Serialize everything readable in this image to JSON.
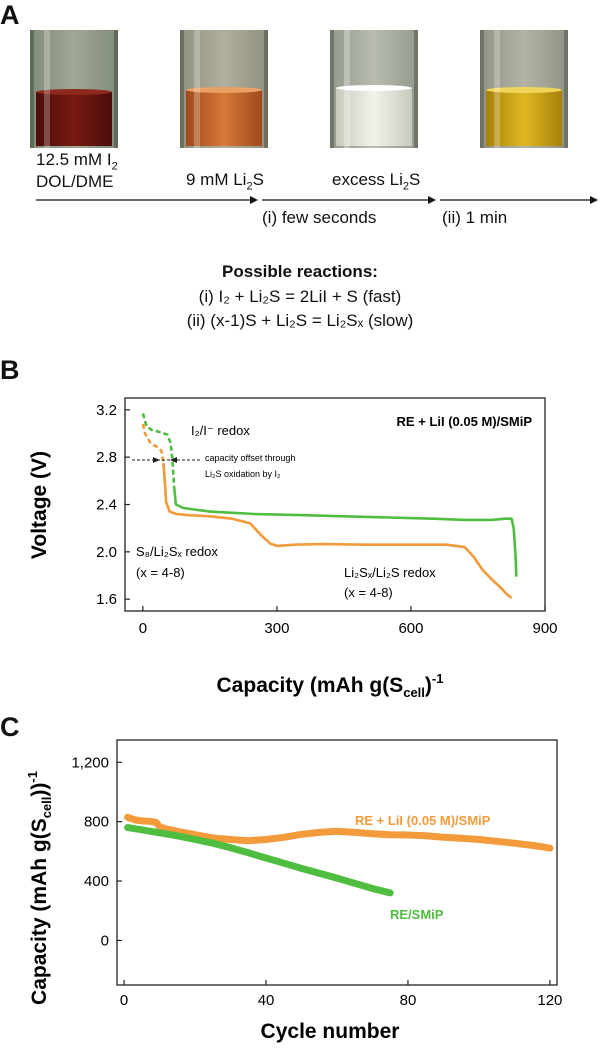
{
  "panel_a": {
    "letter": "A",
    "vials": [
      {
        "liquid": "#6a1512",
        "top": "#8e2a1c",
        "name": "dark-red"
      },
      {
        "liquid": "#c9642a",
        "top": "#e08a48",
        "name": "orange"
      },
      {
        "liquid": "#e9ebe0",
        "top": "#f4f5ee",
        "name": "clear"
      },
      {
        "liquid": "#cfa20f",
        "top": "#e7c73a",
        "name": "yellow"
      }
    ],
    "label_i2_main": "12.5 mM I",
    "label_i2_sub": "2",
    "label_solvent": "DOL/DME",
    "label_li2s_pre": "9 mM Li",
    "label_li2s_sub": "2",
    "label_li2s_post": "S",
    "label_excess_pre": "excess Li",
    "label_excess_sub": "2",
    "label_excess_post": "S",
    "step_i": "(i) few seconds",
    "step_ii": "(ii) 1 min",
    "reactions_title": "Possible reactions:",
    "reaction_i": "(i) I₂ + Li₂S = 2LiI + S (fast)",
    "reaction_ii": "(ii) (x-1)S + Li₂S = Li₂Sₓ (slow)"
  },
  "chart_data": [
    {
      "panel": "B",
      "type": "line",
      "xlabel": "Capacity (mAh g(S",
      "xlabel_sub": "cell",
      "xlabel_end": ")",
      "xlabel_sup": "-1",
      "ylabel": "Voltage (V)",
      "xlim": [
        -40,
        900
      ],
      "ylim": [
        1.5,
        3.3
      ],
      "x_ticks": [
        0,
        300,
        600,
        900
      ],
      "x_tick_labels": [
        "0",
        "300",
        "600",
        "900"
      ],
      "y_ticks": [
        1.6,
        2.0,
        2.4,
        2.8,
        3.2
      ],
      "y_tick_labels": [
        "1.6",
        "2.0",
        "2.4",
        "2.8",
        "3.2"
      ],
      "legend_text": "RE + LiI (0.05 M)/SMiP",
      "annotation_redox": "I₂/I⁻ redox",
      "annotation_offset_1": "capacity offset through",
      "annotation_offset_2": "Li₂S oxidation by I₂",
      "annotation_s8": "S₈/Li₂Sₓ redox",
      "annotation_s8_range": "(x = 4-8)",
      "annotation_li2sx": "Li₂Sₓ/Li₂S redox",
      "annotation_li2sx_range": "(x = 4-8)",
      "series": [
        {
          "color": "#f39a3a",
          "dashed_until": 50,
          "points": [
            [
              0,
              3.08
            ],
            [
              5,
              3.0
            ],
            [
              15,
              2.93
            ],
            [
              25,
              2.9
            ],
            [
              35,
              2.88
            ],
            [
              42,
              2.85
            ],
            [
              46,
              2.75
            ],
            [
              50,
              2.55
            ],
            [
              52,
              2.42
            ],
            [
              60,
              2.34
            ],
            [
              75,
              2.32
            ],
            [
              100,
              2.31
            ],
            [
              150,
              2.3
            ],
            [
              200,
              2.28
            ],
            [
              240,
              2.24
            ],
            [
              265,
              2.14
            ],
            [
              285,
              2.07
            ],
            [
              300,
              2.05
            ],
            [
              340,
              2.06
            ],
            [
              400,
              2.065
            ],
            [
              500,
              2.06
            ],
            [
              600,
              2.06
            ],
            [
              680,
              2.06
            ],
            [
              720,
              2.04
            ],
            [
              740,
              1.96
            ],
            [
              760,
              1.85
            ],
            [
              780,
              1.77
            ],
            [
              800,
              1.7
            ],
            [
              815,
              1.64
            ],
            [
              825,
              1.61
            ]
          ]
        },
        {
          "color": "#4fbd3f",
          "dashed_until": 72,
          "points": [
            [
              0,
              3.17
            ],
            [
              4,
              3.12
            ],
            [
              8,
              3.06
            ],
            [
              20,
              3.03
            ],
            [
              40,
              3.01
            ],
            [
              55,
              2.99
            ],
            [
              62,
              2.92
            ],
            [
              66,
              2.78
            ],
            [
              70,
              2.55
            ],
            [
              74,
              2.4
            ],
            [
              90,
              2.37
            ],
            [
              150,
              2.34
            ],
            [
              250,
              2.32
            ],
            [
              350,
              2.31
            ],
            [
              450,
              2.3
            ],
            [
              550,
              2.29
            ],
            [
              650,
              2.28
            ],
            [
              720,
              2.27
            ],
            [
              780,
              2.27
            ],
            [
              810,
              2.28
            ],
            [
              825,
              2.28
            ],
            [
              830,
              2.2
            ],
            [
              834,
              1.97
            ],
            [
              836,
              1.79
            ]
          ]
        }
      ]
    },
    {
      "panel": "C",
      "type": "scatter",
      "xlabel": "Cycle number",
      "ylabel": "Capacity (mAh g(S",
      "ylabel_sub": "cell",
      "ylabel_end": "))",
      "ylabel_sup": "-1",
      "xlim": [
        -2,
        122
      ],
      "ylim": [
        -300,
        1350
      ],
      "x_ticks": [
        0,
        40,
        80,
        120
      ],
      "x_tick_labels": [
        "0",
        "40",
        "80",
        "120"
      ],
      "y_ticks": [
        0,
        400,
        800,
        1200
      ],
      "y_tick_labels": [
        "0",
        "400",
        "800",
        "1,200"
      ],
      "series": [
        {
          "name": "RE + LiI (0.05 M)/SMiP",
          "color": "#f39a3a",
          "points": [
            [
              1,
              830
            ],
            [
              3,
              812
            ],
            [
              5,
              805
            ],
            [
              7,
              803
            ],
            [
              9,
              796
            ],
            [
              10,
              765
            ],
            [
              12,
              750
            ],
            [
              15,
              735
            ],
            [
              20,
              712
            ],
            [
              25,
              690
            ],
            [
              30,
              680
            ],
            [
              35,
              672
            ],
            [
              40,
              680
            ],
            [
              45,
              695
            ],
            [
              50,
              715
            ],
            [
              55,
              728
            ],
            [
              60,
              735
            ],
            [
              65,
              728
            ],
            [
              70,
              718
            ],
            [
              75,
              712
            ],
            [
              80,
              710
            ],
            [
              85,
              705
            ],
            [
              90,
              695
            ],
            [
              95,
              688
            ],
            [
              100,
              680
            ],
            [
              105,
              668
            ],
            [
              110,
              655
            ],
            [
              115,
              640
            ],
            [
              118,
              630
            ],
            [
              120,
              622
            ]
          ]
        },
        {
          "name": "RE/SMiP",
          "color": "#4fbd3f",
          "points": [
            [
              1,
              760
            ],
            [
              5,
              745
            ],
            [
              10,
              725
            ],
            [
              15,
              705
            ],
            [
              20,
              680
            ],
            [
              25,
              655
            ],
            [
              30,
              625
            ],
            [
              35,
              590
            ],
            [
              40,
              555
            ],
            [
              45,
              520
            ],
            [
              50,
              485
            ],
            [
              55,
              452
            ],
            [
              60,
              420
            ],
            [
              65,
              385
            ],
            [
              70,
              350
            ],
            [
              75,
              320
            ]
          ]
        }
      ]
    }
  ]
}
